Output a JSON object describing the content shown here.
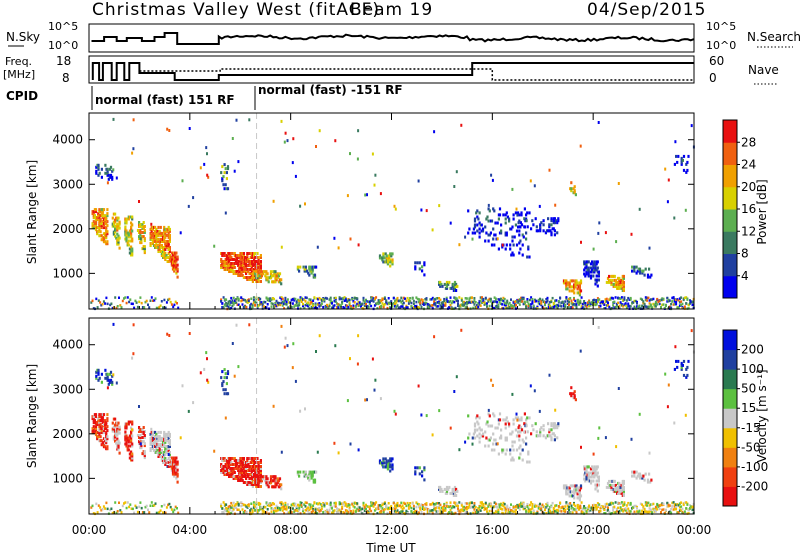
{
  "header": {
    "station": "Christmas Valley West (fitACF)",
    "beam": "Beam 19",
    "date": "04/Sep/2015"
  },
  "summary_panels": {
    "nsky": {
      "left_label": "N.Sky",
      "right_label": "N.Search",
      "left_ticks": [
        "10^5",
        "10^0"
      ],
      "right_ticks": [
        "10^5",
        "10^0"
      ]
    },
    "freq": {
      "left_label_line1": "Freq.",
      "left_label_line2": "[MHz]",
      "left_ticks": [
        "18",
        "8"
      ],
      "right_label": "Nave",
      "right_ticks": [
        "60",
        "0"
      ]
    },
    "cpid": {
      "label": "CPID",
      "segments": [
        "normal (fast) 151 RF",
        "normal (fast) -151 RF"
      ]
    }
  },
  "colors": {
    "power_scale": [
      "#0000ee",
      "#2040a0",
      "#3a7a60",
      "#5cae50",
      "#d8d000",
      "#f0a000",
      "#f06010",
      "#e81010"
    ],
    "velocity_scale": [
      "#e81010",
      "#f04010",
      "#f08010",
      "#f0c000",
      "#c8c8c8",
      "#5cc040",
      "#2a7a50",
      "#2040a0",
      "#0010dd"
    ],
    "ground_scatter": "#c8c8c8"
  },
  "chart_data": [
    {
      "type": "heatmap",
      "name": "power",
      "ylabel": "Slant Range [km]",
      "yticks": [
        "1000",
        "2000",
        "3000",
        "4000"
      ],
      "ylim": [
        200,
        4600
      ],
      "colorbar_label": "Power [dB]",
      "colorbar_ticks": [
        "4",
        "8",
        "12",
        "16",
        "20",
        "24",
        "28"
      ],
      "x_hours": [
        0,
        24
      ]
    },
    {
      "type": "heatmap",
      "name": "velocity",
      "ylabel": "Slant Range [km]",
      "yticks": [
        "1000",
        "2000",
        "3000",
        "4000"
      ],
      "ylim": [
        200,
        4600
      ],
      "colorbar_label": "Velocity [m s⁻¹]",
      "colorbar_ticks": [
        "-200",
        "-100",
        "-50",
        "-15",
        "15",
        "50",
        "100",
        "200"
      ],
      "xlabel": "Time UT",
      "xticks": [
        "00:00",
        "04:00",
        "08:00",
        "12:00",
        "16:00",
        "20:00",
        "00:00"
      ],
      "x_hours": [
        0,
        24
      ]
    }
  ]
}
